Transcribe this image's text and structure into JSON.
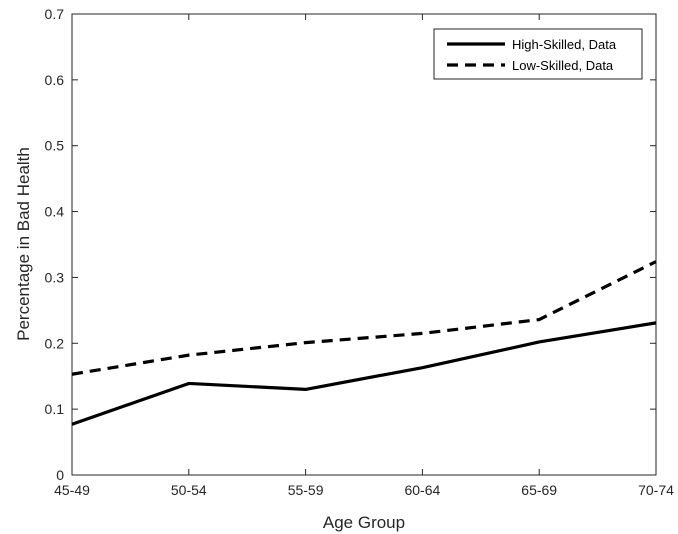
{
  "chart_data": {
    "type": "line",
    "title": "",
    "xlabel": "Age Group",
    "ylabel": "Percentage in Bad Health",
    "categories": [
      "45-49",
      "50-54",
      "55-59",
      "60-64",
      "65-69",
      "70-74"
    ],
    "ylim": [
      0,
      0.7
    ],
    "yticks": [
      "0",
      "0.1",
      "0.2",
      "0.3",
      "0.4",
      "0.5",
      "0.6",
      "0.7"
    ],
    "grid": false,
    "legend_position": "top-right",
    "series": [
      {
        "name": "High-Skilled, Data",
        "values": [
          0.077,
          0.139,
          0.13,
          0.163,
          0.202,
          0.231
        ],
        "style": "solid",
        "color": "#000000"
      },
      {
        "name": "Low-Skilled, Data",
        "values": [
          0.153,
          0.182,
          0.201,
          0.215,
          0.236,
          0.324
        ],
        "style": "dashed",
        "color": "#000000"
      }
    ]
  }
}
